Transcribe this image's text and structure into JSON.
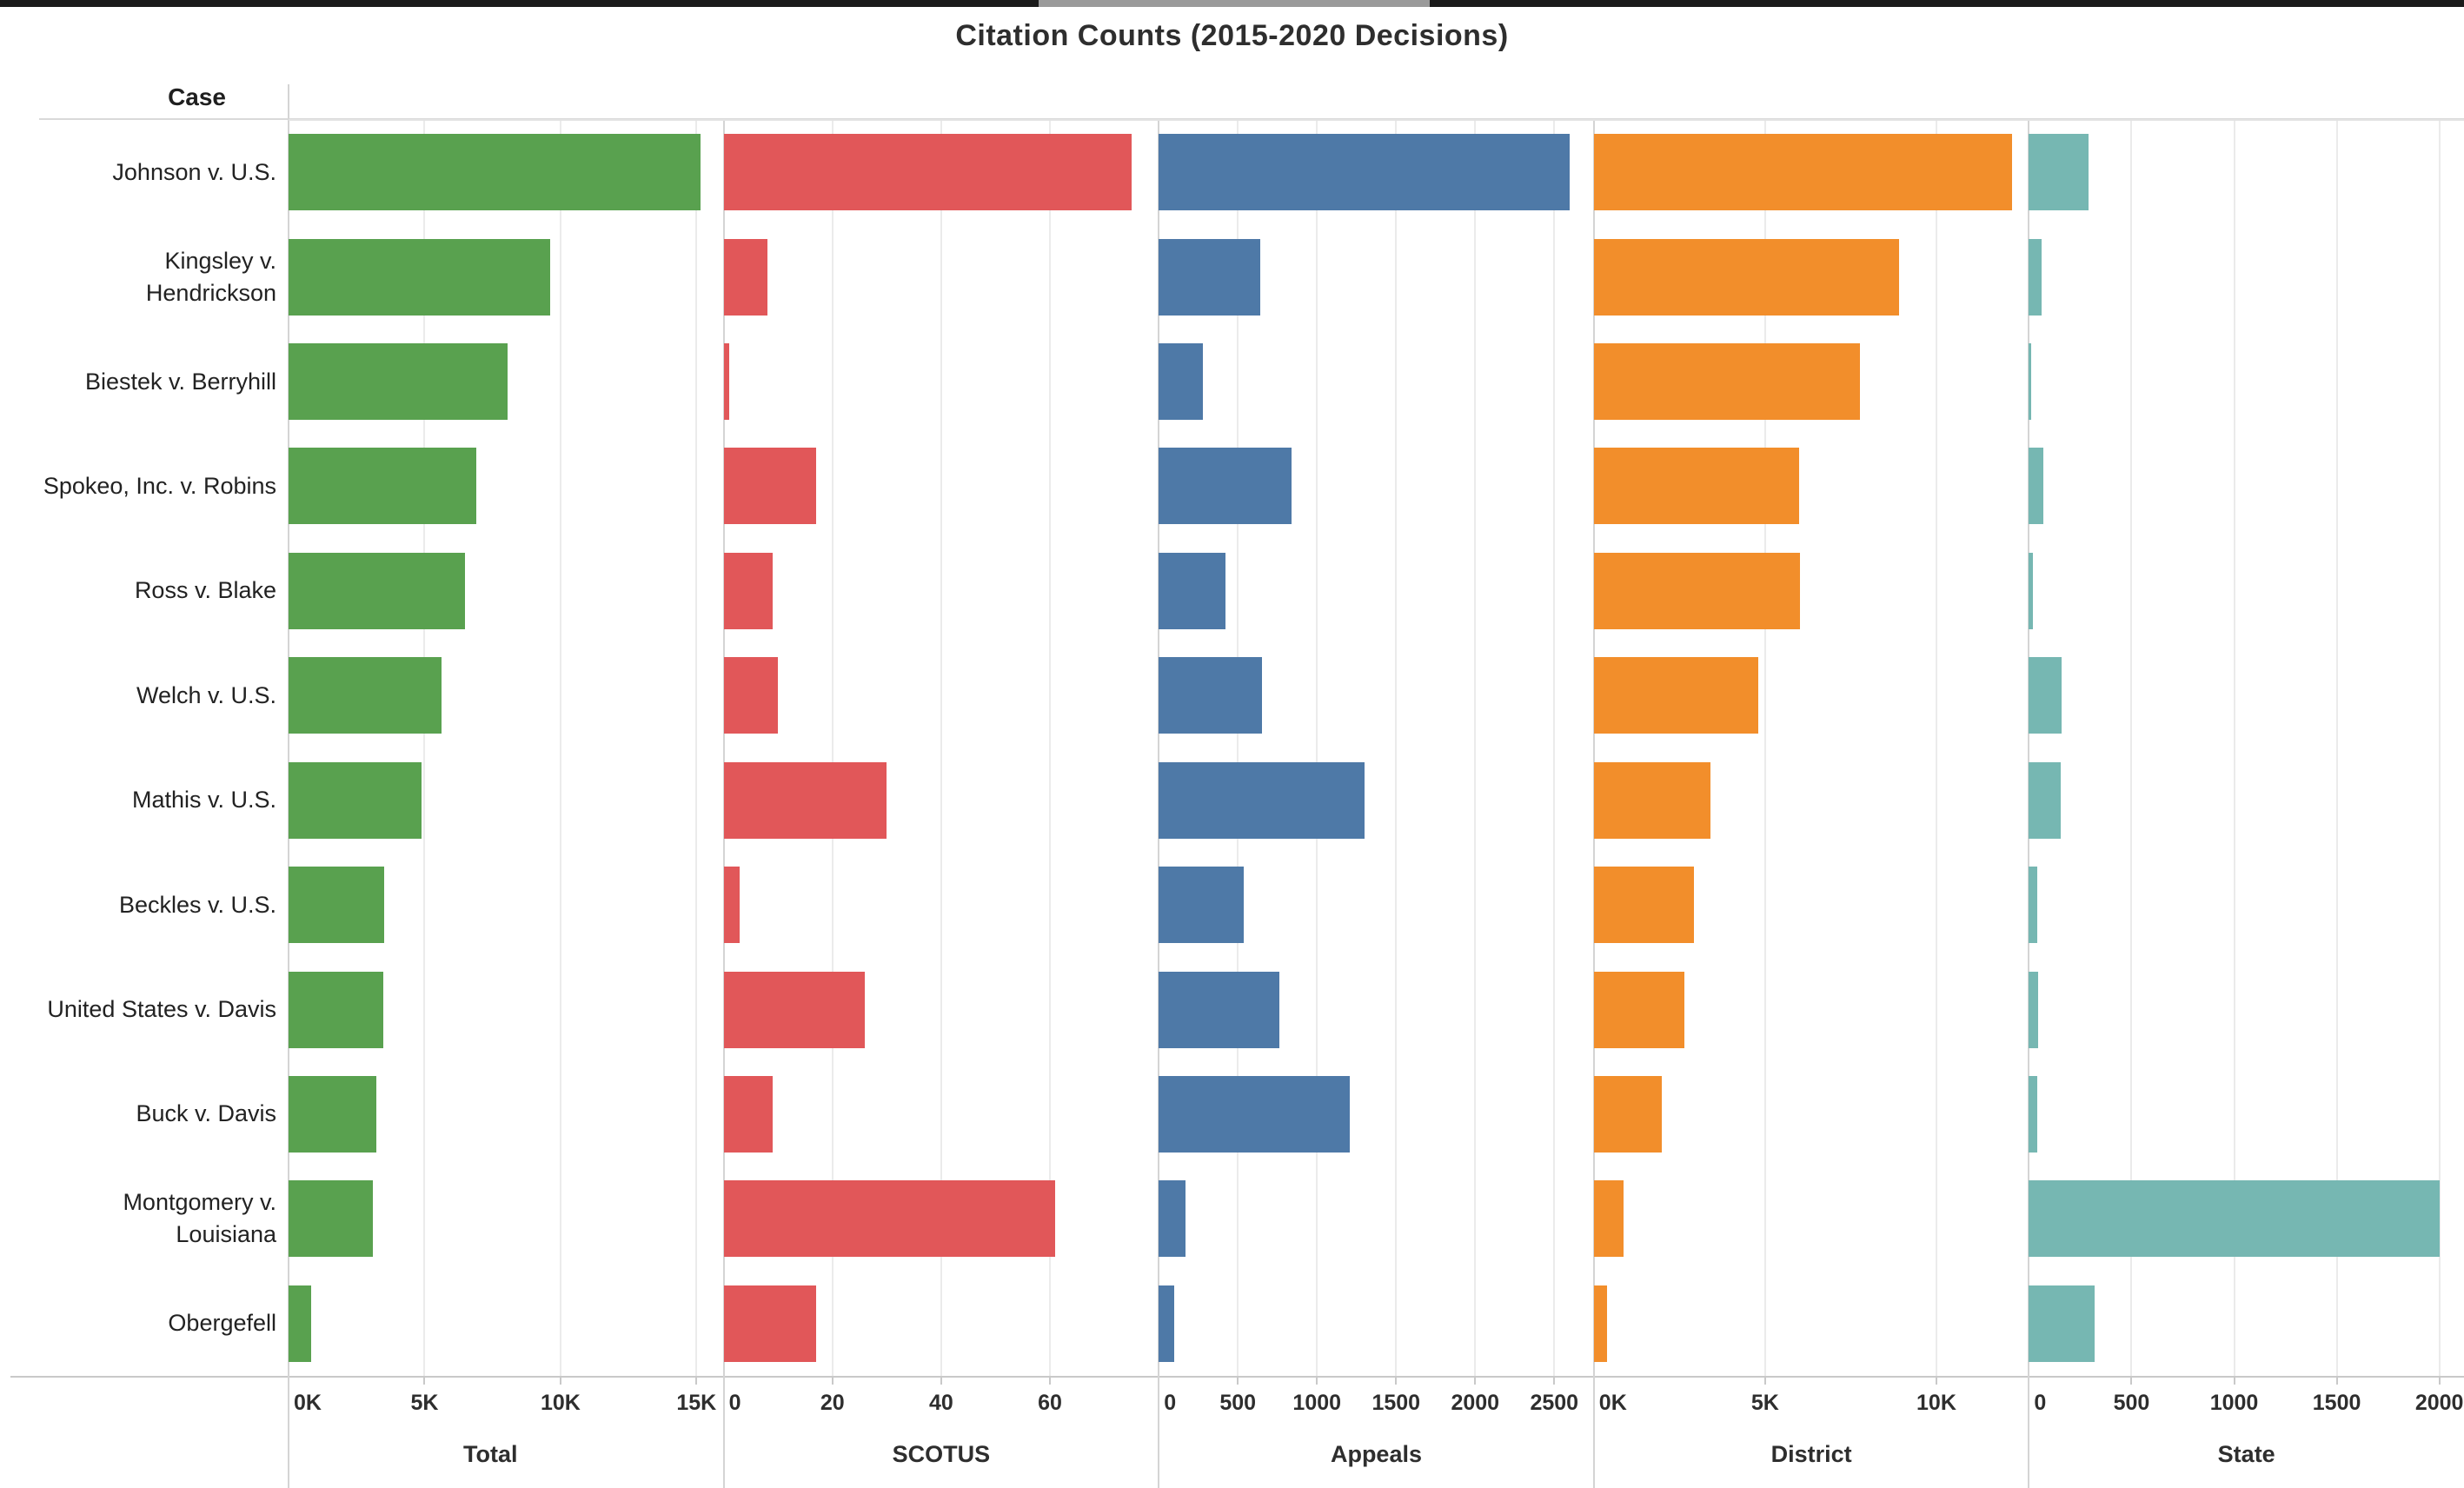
{
  "topbar": {
    "color": "#1b1b1b",
    "segment_color": "#9a9a9a"
  },
  "title": "Citation Counts (2015-2020 Decisions)",
  "row_header": {
    "label": "Case",
    "sort_icon": "sort-bars-descending"
  },
  "chart_data": {
    "type": "bar",
    "orientation": "horizontal",
    "title": "Citation Counts (2015-2020 Decisions)",
    "row_axis_label": "Case",
    "grid": true,
    "legend": "none",
    "sorted_by": "Total descending",
    "categories": [
      "Johnson v. U.S.",
      "Kingsley v. Hendrickson",
      "Biestek v. Berryhill",
      "Spokeo, Inc. v. Robins",
      "Ross v. Blake",
      "Welch v. U.S.",
      "Mathis v. U.S.",
      "Beckles v. U.S.",
      "United States v. Davis",
      "Buck v. Davis",
      "Montgomery v. Louisiana",
      "Obergefell"
    ],
    "category_lines": [
      [
        "Johnson v. U.S."
      ],
      [
        "Kingsley v.",
        "Hendrickson"
      ],
      [
        "Biestek v. Berryhill"
      ],
      [
        "Spokeo, Inc. v. Robins"
      ],
      [
        "Ross v. Blake"
      ],
      [
        "Welch v. U.S."
      ],
      [
        "Mathis v. U.S."
      ],
      [
        "Beckles v. U.S."
      ],
      [
        "United States v. Davis"
      ],
      [
        "Buck v. Davis"
      ],
      [
        "Montgomery v.",
        "Louisiana"
      ],
      [
        "Obergefell"
      ]
    ],
    "panels": [
      {
        "title": "Total",
        "color": "#59a14f",
        "max": 16000,
        "has_sort_icon": true,
        "ticks": [
          {
            "value": 0,
            "label": "0K"
          },
          {
            "value": 5000,
            "label": "5K"
          },
          {
            "value": 10000,
            "label": "10K"
          },
          {
            "value": 15000,
            "label": "15K"
          }
        ],
        "values": [
          15165,
          9608,
          8051,
          6907,
          6479,
          5630,
          4885,
          3513,
          3471,
          3239,
          3091,
          817
        ]
      },
      {
        "title": "SCOTUS",
        "color": "#e15759",
        "max": 80,
        "has_sort_icon": false,
        "ticks": [
          {
            "value": 0,
            "label": "0"
          },
          {
            "value": 20,
            "label": "20"
          },
          {
            "value": 40,
            "label": "40"
          },
          {
            "value": 60,
            "label": "60"
          }
        ],
        "values": [
          75,
          8,
          1,
          17,
          9,
          10,
          30,
          3,
          26,
          9,
          61,
          17
        ]
      },
      {
        "title": "Appeals",
        "color": "#4e79a7",
        "max": 2750,
        "has_sort_icon": false,
        "ticks": [
          {
            "value": 0,
            "label": "0"
          },
          {
            "value": 500,
            "label": "500"
          },
          {
            "value": 1000,
            "label": "1000"
          },
          {
            "value": 1500,
            "label": "1500"
          },
          {
            "value": 2000,
            "label": "2000"
          },
          {
            "value": 2500,
            "label": "2500"
          }
        ],
        "values": [
          2600,
          640,
          280,
          840,
          420,
          650,
          1300,
          540,
          760,
          1210,
          170,
          100
        ]
      },
      {
        "title": "District",
        "color": "#f28e2b",
        "max": 12700,
        "has_sort_icon": false,
        "ticks": [
          {
            "value": 0,
            "label": "0K"
          },
          {
            "value": 5000,
            "label": "5K"
          },
          {
            "value": 10000,
            "label": "10K"
          }
        ],
        "values": [
          12200,
          8900,
          7760,
          5980,
          6030,
          4810,
          3400,
          2930,
          2640,
          1980,
          860,
          380
        ]
      },
      {
        "title": "State",
        "color": "#76b7b2",
        "max": 2120,
        "has_sort_icon": false,
        "ticks": [
          {
            "value": 0,
            "label": "0"
          },
          {
            "value": 500,
            "label": "500"
          },
          {
            "value": 1000,
            "label": "1000"
          },
          {
            "value": 1500,
            "label": "1500"
          },
          {
            "value": 2000,
            "label": "2000"
          }
        ],
        "values": [
          290,
          60,
          10,
          70,
          20,
          160,
          155,
          40,
          45,
          40,
          2000,
          320
        ]
      }
    ]
  }
}
